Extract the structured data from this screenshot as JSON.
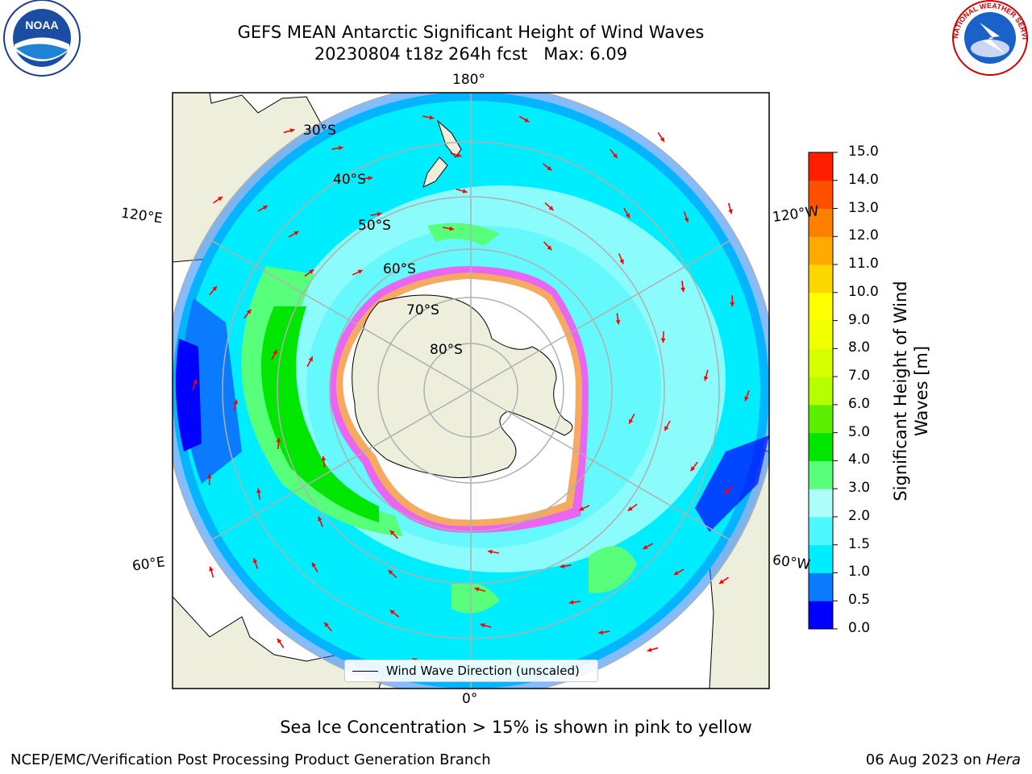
{
  "title": {
    "line1": "GEFS MEAN Antarctic Significant Height of Wind Waves",
    "line2": "20230804 t18z 264h fcst   Max: 6.09"
  },
  "logos": {
    "noaa_text": "NOAA",
    "nws_text": "NATIONAL WEATHER SERVICE"
  },
  "map": {
    "projection": "south-polar-stereographic",
    "longitude_labels": {
      "top": "180°",
      "left_upper": "120°E",
      "right_upper": "120°W",
      "left_lower": "60°E",
      "right_lower": "60°W",
      "bottom": "0°"
    },
    "latitude_labels": [
      "30°S",
      "40°S",
      "50°S",
      "60°S",
      "70°S",
      "80°S"
    ],
    "legend_label": "Wind Wave Direction (unscaled)",
    "arrow_color": "#ff0000"
  },
  "colorbar": {
    "title": "Significant Height of Wind Waves [m]",
    "ticks": [
      "0.0",
      "0.5",
      "1.0",
      "1.5",
      "2.0",
      "3.0",
      "4.0",
      "5.0",
      "6.0",
      "7.0",
      "8.0",
      "9.0",
      "10.0",
      "11.0",
      "12.0",
      "13.0",
      "14.0",
      "15.0"
    ],
    "colors": [
      "#0000ff",
      "#0a7bff",
      "#00ecff",
      "#4df9ff",
      "#aefffa",
      "#58ff7a",
      "#00e600",
      "#5cf000",
      "#b5ff00",
      "#d8ff00",
      "#f2ff00",
      "#ffff00",
      "#ffd700",
      "#ffaa00",
      "#ff8000",
      "#ff5000",
      "#ff1e00"
    ]
  },
  "caption": "Sea Ice Concentration > 15% is shown in pink to yellow",
  "footer": {
    "left": "NCEP/EMC/Verification Post Processing Product Generation Branch",
    "right_prefix": "06 Aug 2023 on ",
    "right_host": "Hera"
  }
}
